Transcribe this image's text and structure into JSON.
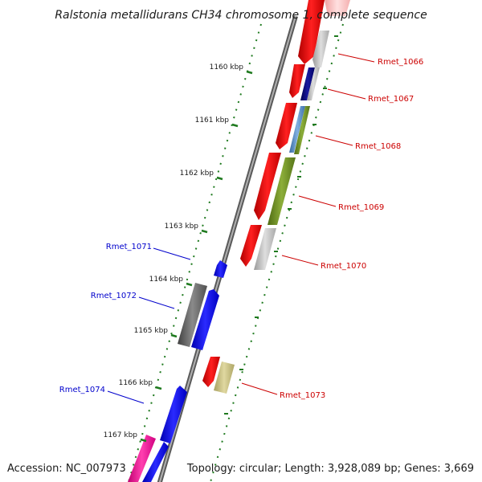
{
  "title": "Ralstonia metallidurans CH34 chromosome 1, complete sequence",
  "footer": {
    "accession": "Accession: NC_007973",
    "summary": "Topology: circular; Length: 3,928,089 bp; Genes: 3,669"
  },
  "colors": {
    "backbone": "#808080",
    "tick": "#1f7a1f",
    "forward_label": "#cc0000",
    "reverse_label": "#0000cc"
  },
  "position_marks": [
    {
      "label": "1160 kbp"
    },
    {
      "label": "1161 kbp"
    },
    {
      "label": "1162 kbp"
    },
    {
      "label": "1163 kbp"
    },
    {
      "label": "1164 kbp"
    },
    {
      "label": "1165 kbp"
    },
    {
      "label": "1166 kbp"
    },
    {
      "label": "1167 kbp"
    }
  ],
  "gene_labels": [
    {
      "name": "Rmet_1066",
      "strand": "forward"
    },
    {
      "name": "Rmet_1067",
      "strand": "forward"
    },
    {
      "name": "Rmet_1068",
      "strand": "forward"
    },
    {
      "name": "Rmet_1069",
      "strand": "forward"
    },
    {
      "name": "Rmet_1070",
      "strand": "forward"
    },
    {
      "name": "Rmet_1071",
      "strand": "reverse"
    },
    {
      "name": "Rmet_1072",
      "strand": "reverse"
    },
    {
      "name": "Rmet_1073",
      "strand": "forward"
    },
    {
      "name": "Rmet_1074",
      "strand": "reverse"
    }
  ]
}
